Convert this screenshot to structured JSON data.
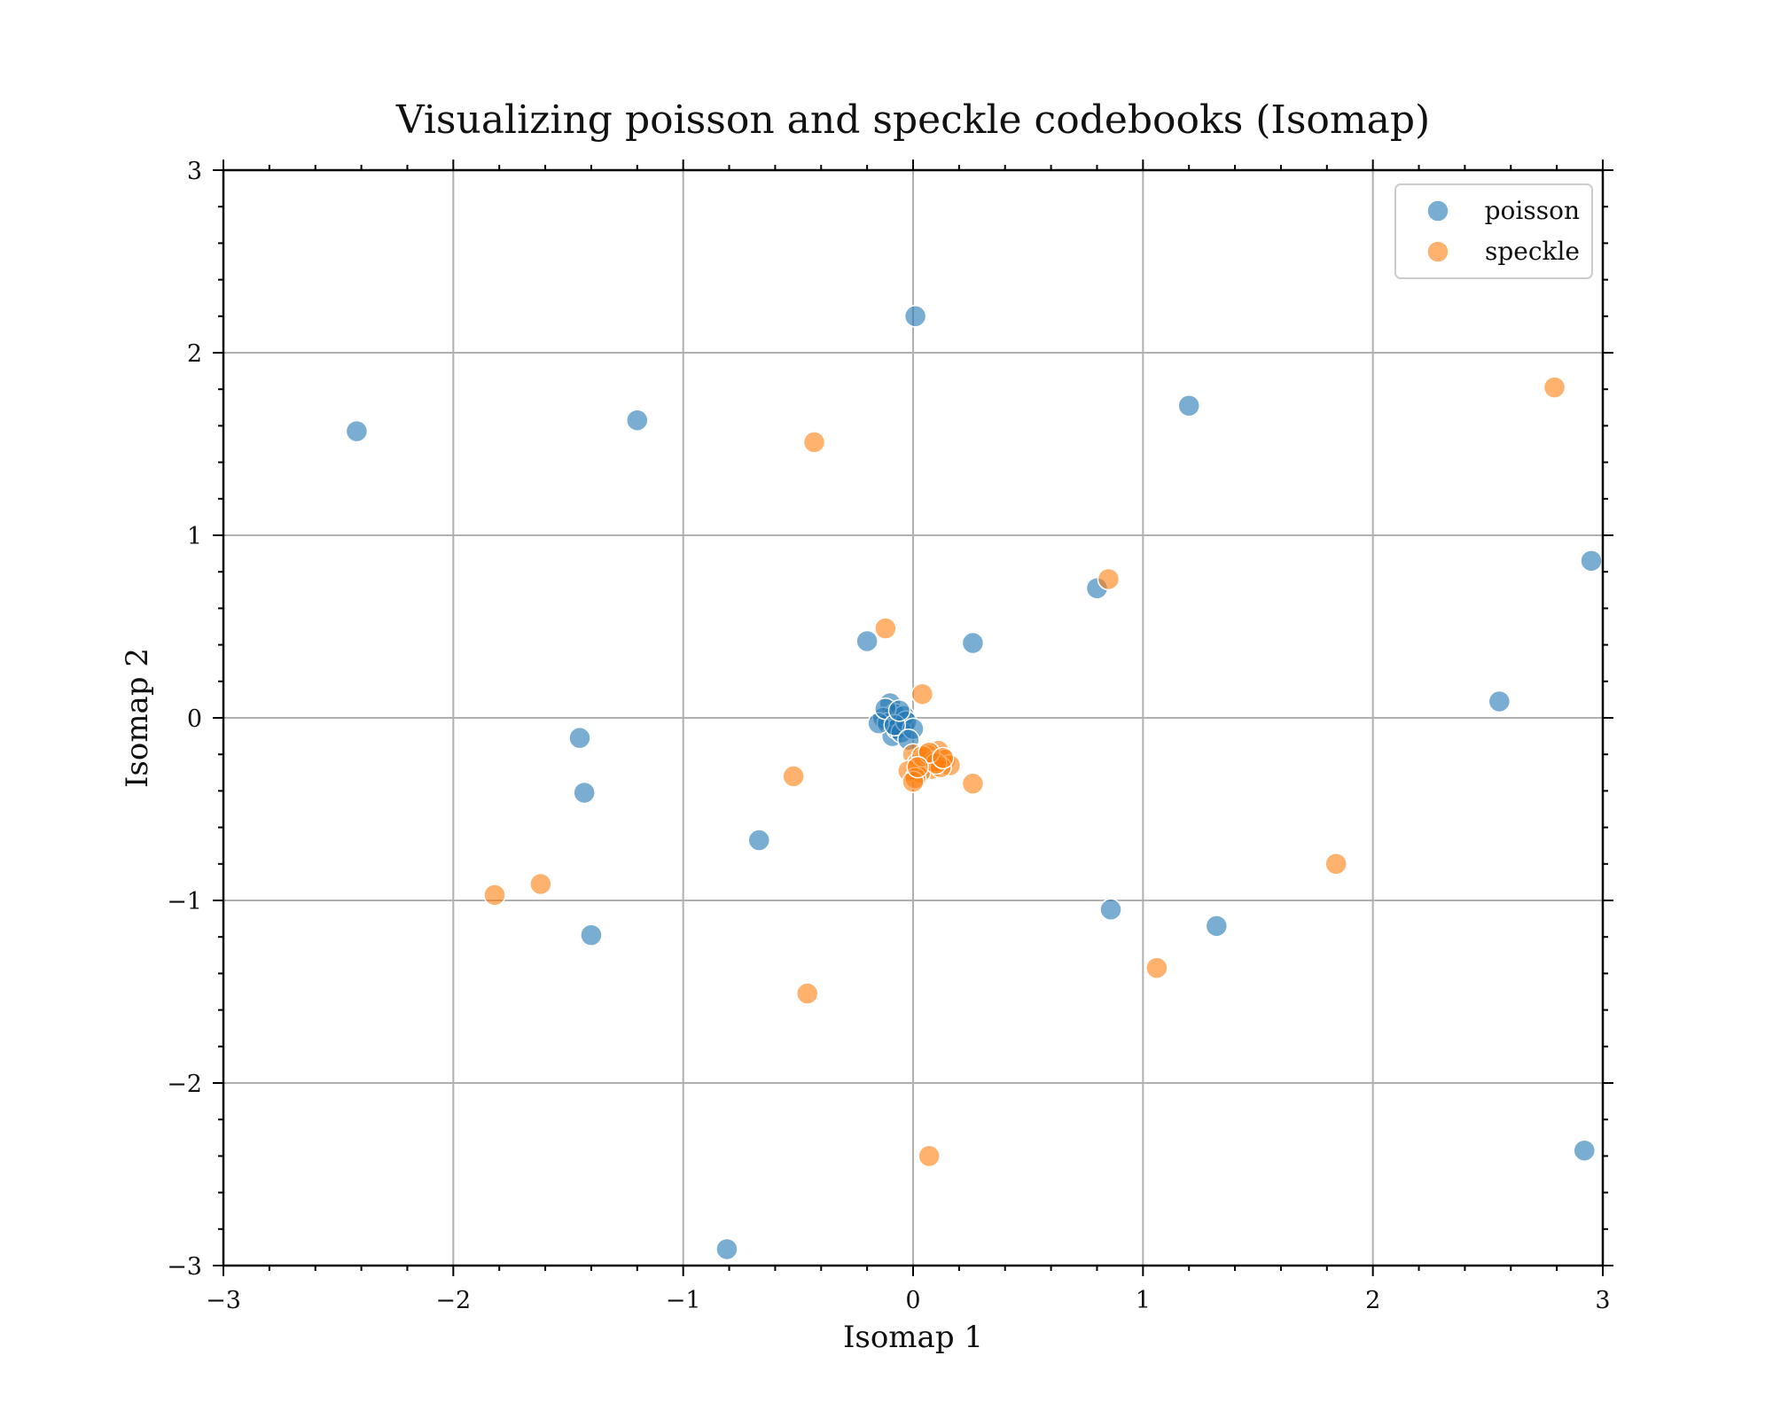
{
  "chart_data": {
    "type": "scatter",
    "title": "Visualizing poisson and speckle codebooks (Isomap)",
    "xlabel": "Isomap 1",
    "ylabel": "Isomap 2",
    "xlim": [
      -3,
      3
    ],
    "ylim": [
      -3,
      3
    ],
    "xticks": [
      -3,
      -2,
      -1,
      0,
      1,
      2,
      3
    ],
    "yticks": [
      -3,
      -2,
      -1,
      0,
      1,
      2,
      3
    ],
    "xtick_labels": [
      "−3",
      "−2",
      "−1",
      "0",
      "1",
      "2",
      "3"
    ],
    "ytick_labels": [
      "−3",
      "−2",
      "−1",
      "0",
      "1",
      "2",
      "3"
    ],
    "grid": true,
    "legend_position": "top-right",
    "series": [
      {
        "name": "poisson",
        "color": "#1f77b4",
        "x": [
          0.01,
          -2.42,
          -1.2,
          1.2,
          2.95,
          0.8,
          0.26,
          -0.2,
          2.55,
          -1.45,
          -1.43,
          -0.67,
          -1.4,
          0.86,
          1.32,
          2.92,
          -0.81,
          -0.1,
          -0.08,
          -0.13,
          -0.06,
          -0.04,
          -0.11,
          -0.09,
          -0.07,
          -0.15,
          -0.05,
          -0.12,
          -0.03,
          0.0,
          -0.08,
          -0.06,
          -0.02
        ],
        "y": [
          2.2,
          1.57,
          1.63,
          1.71,
          0.86,
          0.71,
          0.41,
          0.42,
          0.09,
          -0.11,
          -0.41,
          -0.67,
          -1.19,
          -1.05,
          -1.14,
          -2.37,
          -2.91,
          0.08,
          0.02,
          0.0,
          -0.05,
          0.01,
          -0.03,
          -0.1,
          -0.06,
          -0.03,
          -0.08,
          0.05,
          -0.02,
          -0.06,
          -0.04,
          0.04,
          -0.12
        ]
      },
      {
        "name": "speckle",
        "color": "#ff7f0e",
        "x": [
          2.79,
          -0.43,
          0.85,
          -0.12,
          0.04,
          -0.52,
          0.26,
          -1.82,
          -1.62,
          1.84,
          1.06,
          -0.46,
          0.07,
          0.0,
          0.02,
          0.05,
          0.08,
          0.11,
          0.14,
          0.16,
          0.03,
          0.06,
          0.09,
          0.12,
          -0.02,
          0.01,
          0.04,
          0.1,
          0.0,
          0.07,
          0.13,
          0.02
        ],
        "y": [
          1.81,
          1.51,
          0.76,
          0.49,
          0.13,
          -0.32,
          -0.36,
          -0.97,
          -0.91,
          -0.8,
          -1.37,
          -1.51,
          -2.4,
          -0.2,
          -0.25,
          -0.22,
          -0.28,
          -0.18,
          -0.23,
          -0.26,
          -0.3,
          -0.2,
          -0.24,
          -0.27,
          -0.29,
          -0.33,
          -0.21,
          -0.25,
          -0.35,
          -0.19,
          -0.22,
          -0.27
        ]
      }
    ]
  }
}
